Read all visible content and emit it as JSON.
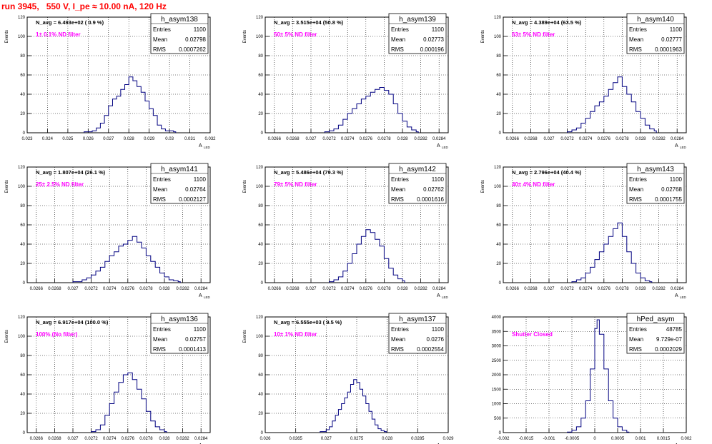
{
  "page_title": "run 3945,   550 V, I_pe ≈ 10.00 nA, 120 Hz",
  "colors": {
    "hist": "#000080",
    "annotation": "#ff00ff",
    "title": "#ff0000",
    "grid": "#000000"
  },
  "chart_data": [
    {
      "type": "histogram",
      "name": "h_asym138",
      "navg_label": "N_avg = 6.493e+02 ( 0.9 %)",
      "filter_label": "1± 0.1% ND filter",
      "stats": {
        "entries": "1100",
        "mean": "0.02798",
        "rms": "0.0007262"
      },
      "ylabel": "Events",
      "xlabel": "A",
      "xlabel_sub": "LED",
      "xlim": [
        0.023,
        0.032
      ],
      "ylim": [
        0,
        120
      ],
      "xticks": [
        "0.023",
        "0.024",
        "0.025",
        "0.026",
        "0.027",
        "0.028",
        "0.029",
        "0.03",
        "0.031",
        "0.032"
      ],
      "yticks": [
        "0",
        "20",
        "40",
        "60",
        "80",
        "100",
        "120"
      ],
      "values": [
        [
          0.0258,
          1
        ],
        [
          0.0262,
          2
        ],
        [
          0.0264,
          5
        ],
        [
          0.0266,
          10
        ],
        [
          0.0268,
          18
        ],
        [
          0.027,
          28
        ],
        [
          0.0272,
          35
        ],
        [
          0.0274,
          38
        ],
        [
          0.0276,
          45
        ],
        [
          0.0278,
          50
        ],
        [
          0.028,
          58
        ],
        [
          0.0282,
          54
        ],
        [
          0.0284,
          48
        ],
        [
          0.0286,
          42
        ],
        [
          0.0288,
          33
        ],
        [
          0.029,
          25
        ],
        [
          0.0292,
          18
        ],
        [
          0.0294,
          8
        ],
        [
          0.0296,
          4
        ],
        [
          0.0298,
          2
        ],
        [
          0.0302,
          1
        ]
      ]
    },
    {
      "type": "histogram",
      "name": "h_asym139",
      "navg_label": "N_avg = 3.515e+04 (50.8 %)",
      "filter_label": "50± 5% ND filter",
      "stats": {
        "entries": "1100",
        "mean": "0.02773",
        "rms": "0.000196"
      },
      "ylabel": "Events",
      "xlabel": "A",
      "xlabel_sub": "LED",
      "xlim": [
        0.0265,
        0.0285
      ],
      "ylim": [
        0,
        120
      ],
      "xticks": [
        "0.0266",
        "0.0268",
        "0.027",
        "0.0272",
        "0.0274",
        "0.0276",
        "0.0278",
        "0.028",
        "0.0282",
        "0.0284"
      ],
      "yticks": [
        "0",
        "20",
        "40",
        "60",
        "80",
        "100",
        "120"
      ],
      "values": [
        [
          0.02715,
          1
        ],
        [
          0.0272,
          2
        ],
        [
          0.02725,
          4
        ],
        [
          0.0273,
          8
        ],
        [
          0.02735,
          14
        ],
        [
          0.0274,
          20
        ],
        [
          0.02745,
          25
        ],
        [
          0.0275,
          30
        ],
        [
          0.02755,
          35
        ],
        [
          0.0276,
          38
        ],
        [
          0.02765,
          42
        ],
        [
          0.0277,
          45
        ],
        [
          0.02775,
          47
        ],
        [
          0.0278,
          44
        ],
        [
          0.02785,
          40
        ],
        [
          0.0279,
          30
        ],
        [
          0.02795,
          20
        ],
        [
          0.028,
          12
        ],
        [
          0.02805,
          6
        ],
        [
          0.0281,
          3
        ],
        [
          0.02815,
          1
        ]
      ]
    },
    {
      "type": "histogram",
      "name": "h_asym140",
      "navg_label": "N_avg = 4.389e+04 (63.5 %)",
      "filter_label": "63± 5% ND filter",
      "stats": {
        "entries": "1100",
        "mean": "0.02777",
        "rms": "0.0001963"
      },
      "ylabel": "Events",
      "xlabel": "A",
      "xlabel_sub": "LED",
      "xlim": [
        0.0265,
        0.0285
      ],
      "ylim": [
        0,
        120
      ],
      "xticks": [
        "0.0266",
        "0.0268",
        "0.027",
        "0.0272",
        "0.0274",
        "0.0276",
        "0.0278",
        "0.028",
        "0.0282",
        "0.0284"
      ],
      "yticks": [
        "0",
        "20",
        "40",
        "60",
        "80",
        "100",
        "120"
      ],
      "values": [
        [
          0.0272,
          1
        ],
        [
          0.02725,
          3
        ],
        [
          0.0273,
          5
        ],
        [
          0.02735,
          10
        ],
        [
          0.0274,
          15
        ],
        [
          0.02745,
          22
        ],
        [
          0.0275,
          28
        ],
        [
          0.02755,
          32
        ],
        [
          0.0276,
          38
        ],
        [
          0.02765,
          45
        ],
        [
          0.0277,
          52
        ],
        [
          0.02775,
          58
        ],
        [
          0.0278,
          48
        ],
        [
          0.02785,
          40
        ],
        [
          0.0279,
          32
        ],
        [
          0.02795,
          22
        ],
        [
          0.028,
          15
        ],
        [
          0.02805,
          8
        ],
        [
          0.0281,
          4
        ],
        [
          0.02815,
          2
        ]
      ]
    },
    {
      "type": "histogram",
      "name": "h_asym141",
      "navg_label": "N_avg = 1.807e+04 (26.1 %)",
      "filter_label": "25± 2.5% ND filter",
      "stats": {
        "entries": "1100",
        "mean": "0.02764",
        "rms": "0.0002127"
      },
      "ylabel": "Events",
      "xlabel": "A",
      "xlabel_sub": "LED",
      "xlim": [
        0.0265,
        0.0285
      ],
      "ylim": [
        0,
        120
      ],
      "xticks": [
        "0.0266",
        "0.0268",
        "0.027",
        "0.0272",
        "0.0274",
        "0.0276",
        "0.0278",
        "0.028",
        "0.0282",
        "0.0284"
      ],
      "yticks": [
        "0",
        "20",
        "40",
        "60",
        "80",
        "100",
        "120"
      ],
      "values": [
        [
          0.027,
          1
        ],
        [
          0.0271,
          3
        ],
        [
          0.02715,
          5
        ],
        [
          0.0272,
          8
        ],
        [
          0.02725,
          12
        ],
        [
          0.0273,
          16
        ],
        [
          0.02735,
          22
        ],
        [
          0.0274,
          28
        ],
        [
          0.02745,
          32
        ],
        [
          0.0275,
          38
        ],
        [
          0.02755,
          40
        ],
        [
          0.0276,
          44
        ],
        [
          0.02765,
          48
        ],
        [
          0.0277,
          42
        ],
        [
          0.02775,
          36
        ],
        [
          0.0278,
          28
        ],
        [
          0.02785,
          22
        ],
        [
          0.0279,
          16
        ],
        [
          0.02795,
          10
        ],
        [
          0.028,
          6
        ],
        [
          0.02805,
          3
        ],
        [
          0.0281,
          2
        ],
        [
          0.02815,
          1
        ]
      ]
    },
    {
      "type": "histogram",
      "name": "h_asym142",
      "navg_label": "N_avg = 5.486e+04 (79.3 %)",
      "filter_label": "79± 5% ND filter",
      "stats": {
        "entries": "1100",
        "mean": "0.02762",
        "rms": "0.0001616"
      },
      "ylabel": "Events",
      "xlabel": "A",
      "xlabel_sub": "LED",
      "xlim": [
        0.0265,
        0.0285
      ],
      "ylim": [
        0,
        120
      ],
      "xticks": [
        "0.0266",
        "0.0268",
        "0.027",
        "0.0272",
        "0.0274",
        "0.0276",
        "0.0278",
        "0.028",
        "0.0282",
        "0.0284"
      ],
      "yticks": [
        "0",
        "20",
        "40",
        "60",
        "80",
        "100",
        "120"
      ],
      "values": [
        [
          0.0272,
          1
        ],
        [
          0.02725,
          3
        ],
        [
          0.0273,
          6
        ],
        [
          0.02735,
          12
        ],
        [
          0.0274,
          20
        ],
        [
          0.02745,
          30
        ],
        [
          0.0275,
          40
        ],
        [
          0.02755,
          48
        ],
        [
          0.0276,
          55
        ],
        [
          0.02765,
          52
        ],
        [
          0.0277,
          45
        ],
        [
          0.02775,
          38
        ],
        [
          0.0278,
          25
        ],
        [
          0.02785,
          15
        ],
        [
          0.0279,
          8
        ],
        [
          0.02795,
          4
        ],
        [
          0.028,
          2
        ]
      ]
    },
    {
      "type": "histogram",
      "name": "h_asym143",
      "navg_label": "N_avg = 2.796e+04 (40.4 %)",
      "filter_label": "40± 4% ND filter",
      "stats": {
        "entries": "1100",
        "mean": "0.02768",
        "rms": "0.0001755"
      },
      "ylabel": "Events",
      "xlabel": "A",
      "xlabel_sub": "LED",
      "xlim": [
        0.0265,
        0.0285
      ],
      "ylim": [
        0,
        120
      ],
      "xticks": [
        "0.0266",
        "0.0268",
        "0.027",
        "0.0272",
        "0.0274",
        "0.0276",
        "0.0278",
        "0.028",
        "0.0282",
        "0.0284"
      ],
      "yticks": [
        "0",
        "20",
        "40",
        "60",
        "80",
        "100",
        "120"
      ],
      "values": [
        [
          0.02725,
          1
        ],
        [
          0.0273,
          3
        ],
        [
          0.02735,
          5
        ],
        [
          0.0274,
          10
        ],
        [
          0.02745,
          16
        ],
        [
          0.0275,
          24
        ],
        [
          0.02755,
          32
        ],
        [
          0.0276,
          40
        ],
        [
          0.02765,
          48
        ],
        [
          0.0277,
          56
        ],
        [
          0.02775,
          62
        ],
        [
          0.0278,
          48
        ],
        [
          0.02785,
          32
        ],
        [
          0.0279,
          20
        ],
        [
          0.02795,
          10
        ],
        [
          0.028,
          5
        ],
        [
          0.02805,
          2
        ],
        [
          0.0281,
          1
        ]
      ]
    },
    {
      "type": "histogram",
      "name": "h_asym136",
      "navg_label": "N_avg = 6.917e+04 (100.0 %)",
      "filter_label": "100% (No filter)",
      "stats": {
        "entries": "1100",
        "mean": "0.02757",
        "rms": "0.0001413"
      },
      "ylabel": "Events",
      "xlabel": "A",
      "xlabel_sub": "LED",
      "xlim": [
        0.0265,
        0.0285
      ],
      "ylim": [
        0,
        120
      ],
      "xticks": [
        "0.0266",
        "0.0268",
        "0.027",
        "0.0272",
        "0.0274",
        "0.0276",
        "0.0278",
        "0.028",
        "0.0282",
        "0.0284"
      ],
      "yticks": [
        "0",
        "20",
        "40",
        "60",
        "80",
        "100",
        "120"
      ],
      "values": [
        [
          0.0272,
          1
        ],
        [
          0.02725,
          3
        ],
        [
          0.0273,
          8
        ],
        [
          0.02735,
          18
        ],
        [
          0.0274,
          30
        ],
        [
          0.02745,
          42
        ],
        [
          0.0275,
          52
        ],
        [
          0.02755,
          60
        ],
        [
          0.0276,
          62
        ],
        [
          0.02765,
          55
        ],
        [
          0.0277,
          45
        ],
        [
          0.02775,
          35
        ],
        [
          0.0278,
          22
        ],
        [
          0.02785,
          12
        ],
        [
          0.0279,
          6
        ],
        [
          0.02795,
          3
        ],
        [
          0.028,
          1
        ]
      ]
    },
    {
      "type": "histogram",
      "name": "h_asym137",
      "navg_label": "N_avg = 6.555e+03 ( 9.5 %)",
      "filter_label": "10± 1% ND filter",
      "stats": {
        "entries": "1100",
        "mean": "0.0276",
        "rms": "0.0002554"
      },
      "ylabel": "Events",
      "xlabel": "A",
      "xlabel_sub": "LED",
      "xlim": [
        0.026,
        0.029
      ],
      "ylim": [
        0,
        120
      ],
      "xticks": [
        "0.026",
        "0.0265",
        "0.027",
        "0.0275",
        "0.028",
        "0.0285",
        "0.029"
      ],
      "yticks": [
        "0",
        "20",
        "40",
        "60",
        "80",
        "100",
        "120"
      ],
      "values": [
        [
          0.0269,
          1
        ],
        [
          0.027,
          3
        ],
        [
          0.02705,
          6
        ],
        [
          0.0271,
          12
        ],
        [
          0.02715,
          18
        ],
        [
          0.0272,
          24
        ],
        [
          0.02725,
          30
        ],
        [
          0.0273,
          36
        ],
        [
          0.02735,
          42
        ],
        [
          0.0274,
          50
        ],
        [
          0.02745,
          55
        ],
        [
          0.0275,
          52
        ],
        [
          0.02755,
          45
        ],
        [
          0.0276,
          38
        ],
        [
          0.02765,
          30
        ],
        [
          0.0277,
          22
        ],
        [
          0.02775,
          14
        ],
        [
          0.0278,
          8
        ],
        [
          0.02785,
          4
        ],
        [
          0.0279,
          2
        ],
        [
          0.02795,
          1
        ]
      ]
    },
    {
      "type": "histogram",
      "name": "hPed_asym",
      "navg_label": "",
      "filter_label": "Shutter Closed",
      "stats": {
        "entries": "48785",
        "mean": "9.729e-07",
        "rms": "0.0002029"
      },
      "ylabel": "",
      "xlabel": "A",
      "xlabel_sub": "LED",
      "xlim": [
        -0.002,
        0.002
      ],
      "ylim": [
        0,
        4000
      ],
      "xticks": [
        "-0.002",
        "-0.0015",
        "-0.001",
        "-0.0005",
        "0",
        "0.0005",
        "0.001",
        "0.0015",
        "0.002"
      ],
      "yticks": [
        "0",
        "500",
        "1000",
        "1500",
        "2000",
        "2500",
        "3000",
        "3500",
        "4000"
      ],
      "values": [
        [
          -0.0006,
          20
        ],
        [
          -0.0005,
          80
        ],
        [
          -0.0004,
          200
        ],
        [
          -0.0003,
          500
        ],
        [
          -0.0002,
          1100
        ],
        [
          -0.0001,
          2200
        ],
        [
          0.0,
          3600
        ],
        [
          5e-05,
          3900
        ],
        [
          0.0001,
          3400
        ],
        [
          0.0002,
          2200
        ],
        [
          0.0003,
          1100
        ],
        [
          0.0004,
          500
        ],
        [
          0.0005,
          200
        ],
        [
          0.0006,
          80
        ],
        [
          0.0007,
          20
        ]
      ]
    }
  ]
}
